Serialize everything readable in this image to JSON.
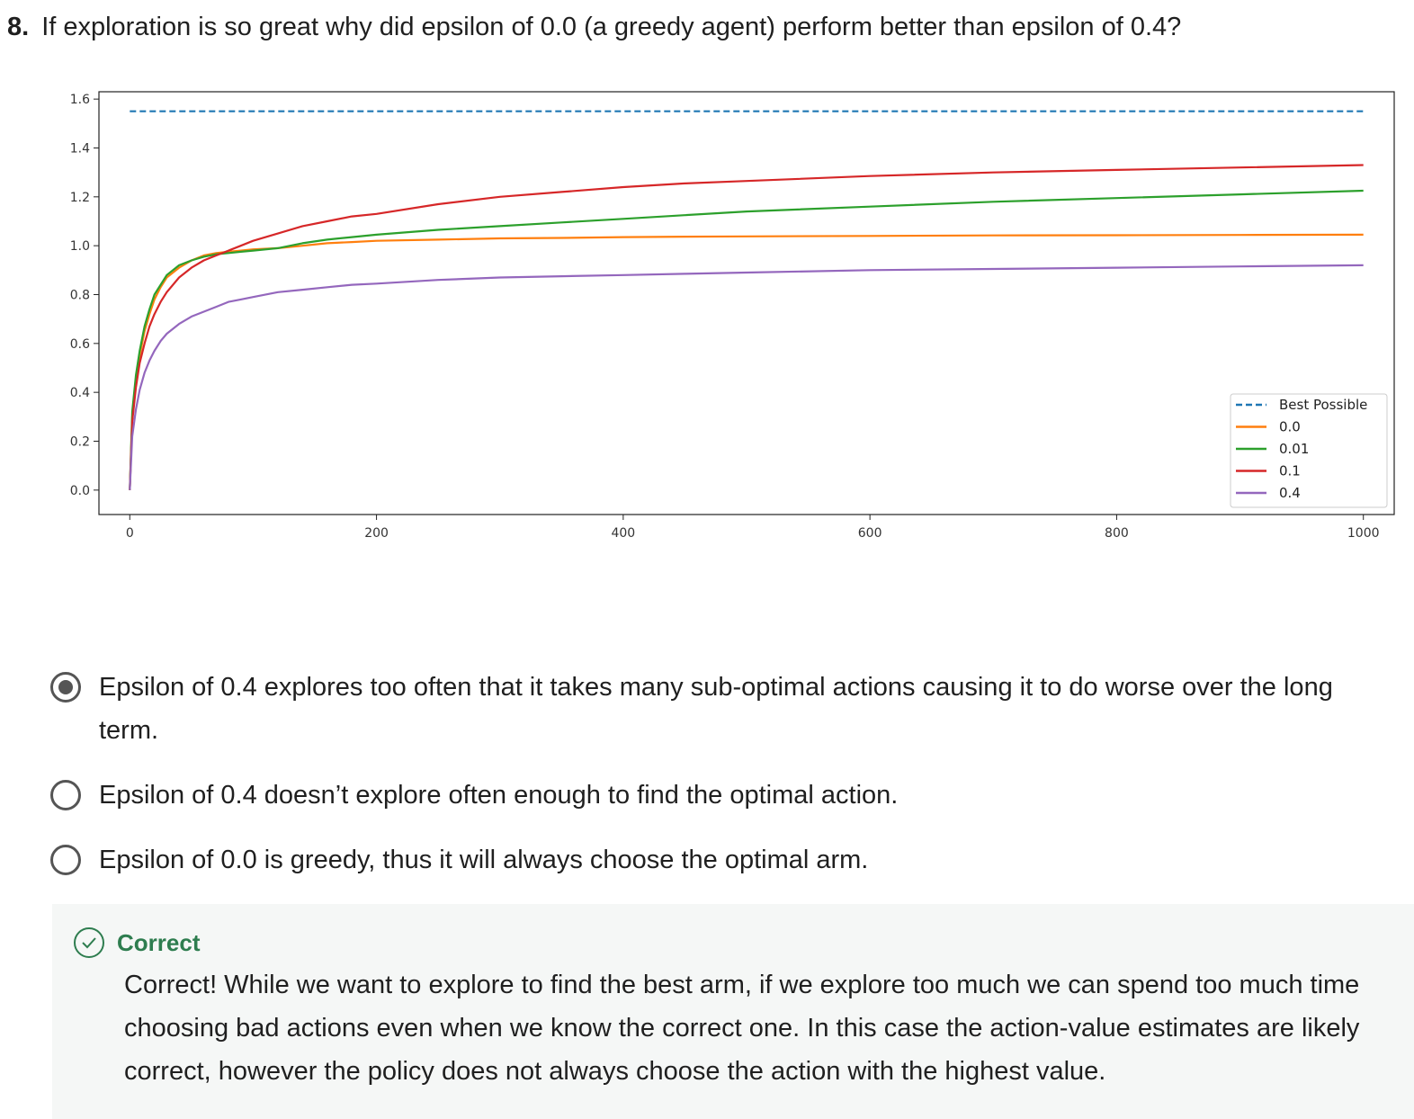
{
  "question": {
    "number": "8.",
    "text": "If exploration is so great why did epsilon of 0.0 (a greedy agent) perform better than epsilon of 0.4?"
  },
  "chart_data": {
    "type": "line",
    "title": "",
    "xlabel": "",
    "ylabel": "",
    "xlim": [
      -25,
      1025
    ],
    "ylim": [
      -0.1,
      1.63
    ],
    "xticks": [
      "0",
      "200",
      "400",
      "600",
      "800",
      "1000"
    ],
    "xtick_values": [
      0,
      200,
      400,
      600,
      800,
      1000
    ],
    "yticks": [
      "0.0",
      "0.2",
      "0.4",
      "0.6",
      "0.8",
      "1.0",
      "1.2",
      "1.4",
      "1.6"
    ],
    "ytick_values": [
      0.0,
      0.2,
      0.4,
      0.6,
      0.8,
      1.0,
      1.2,
      1.4,
      1.6
    ],
    "grid": false,
    "legend_position": "lower-right",
    "x": [
      0,
      2,
      5,
      8,
      12,
      16,
      20,
      25,
      30,
      40,
      50,
      60,
      70,
      80,
      90,
      100,
      120,
      140,
      160,
      180,
      200,
      250,
      300,
      350,
      400,
      450,
      500,
      600,
      700,
      800,
      900,
      1000
    ],
    "series": [
      {
        "name": "Best Possible",
        "color": "#1f77b4",
        "dashed": true,
        "values": [
          1.55,
          1.55,
          1.55,
          1.55,
          1.55,
          1.55,
          1.55,
          1.55,
          1.55,
          1.55,
          1.55,
          1.55,
          1.55,
          1.55,
          1.55,
          1.55,
          1.55,
          1.55,
          1.55,
          1.55,
          1.55,
          1.55,
          1.55,
          1.55,
          1.55,
          1.55,
          1.55,
          1.55,
          1.55,
          1.55,
          1.55,
          1.55
        ]
      },
      {
        "name": "0.0",
        "color": "#ff7f0e",
        "values": [
          0.0,
          0.3,
          0.45,
          0.55,
          0.65,
          0.72,
          0.78,
          0.83,
          0.87,
          0.91,
          0.94,
          0.96,
          0.97,
          0.975,
          0.98,
          0.985,
          0.99,
          1.0,
          1.01,
          1.015,
          1.02,
          1.025,
          1.03,
          1.032,
          1.035,
          1.037,
          1.038,
          1.04,
          1.042,
          1.043,
          1.044,
          1.045
        ]
      },
      {
        "name": "0.01",
        "color": "#2ca02c",
        "values": [
          0.0,
          0.32,
          0.47,
          0.57,
          0.67,
          0.74,
          0.8,
          0.84,
          0.88,
          0.92,
          0.94,
          0.955,
          0.965,
          0.97,
          0.975,
          0.98,
          0.99,
          1.01,
          1.025,
          1.035,
          1.045,
          1.065,
          1.08,
          1.095,
          1.11,
          1.125,
          1.14,
          1.16,
          1.18,
          1.195,
          1.21,
          1.225
        ]
      },
      {
        "name": "0.1",
        "color": "#d62728",
        "values": [
          0.0,
          0.28,
          0.42,
          0.52,
          0.6,
          0.67,
          0.72,
          0.77,
          0.81,
          0.87,
          0.91,
          0.94,
          0.96,
          0.98,
          1.0,
          1.02,
          1.05,
          1.08,
          1.1,
          1.12,
          1.13,
          1.17,
          1.2,
          1.22,
          1.24,
          1.255,
          1.265,
          1.285,
          1.3,
          1.31,
          1.32,
          1.33
        ]
      },
      {
        "name": "0.4",
        "color": "#9467bd",
        "values": [
          0.0,
          0.22,
          0.33,
          0.41,
          0.48,
          0.53,
          0.57,
          0.61,
          0.64,
          0.68,
          0.71,
          0.73,
          0.75,
          0.77,
          0.78,
          0.79,
          0.81,
          0.82,
          0.83,
          0.84,
          0.845,
          0.86,
          0.87,
          0.875,
          0.88,
          0.885,
          0.89,
          0.9,
          0.905,
          0.91,
          0.915,
          0.92
        ]
      }
    ]
  },
  "options": [
    {
      "label": "Epsilon of 0.4 explores too often that it takes many sub-optimal actions causing it to do worse over the long term.",
      "selected": true
    },
    {
      "label": "Epsilon of 0.4 doesn’t explore often enough to find the optimal action.",
      "selected": false
    },
    {
      "label": "Epsilon of 0.0 is greedy, thus it will always choose the optimal arm.",
      "selected": false
    }
  ],
  "feedback": {
    "title": "Correct",
    "text": "Correct! While we want to explore to find the best arm, if we explore too much we can spend too much time choosing bad actions even when we know the correct one. In this case the action-value estimates are likely correct, however the policy does not always choose the action with the highest value.",
    "color": "#2e7d4f"
  }
}
